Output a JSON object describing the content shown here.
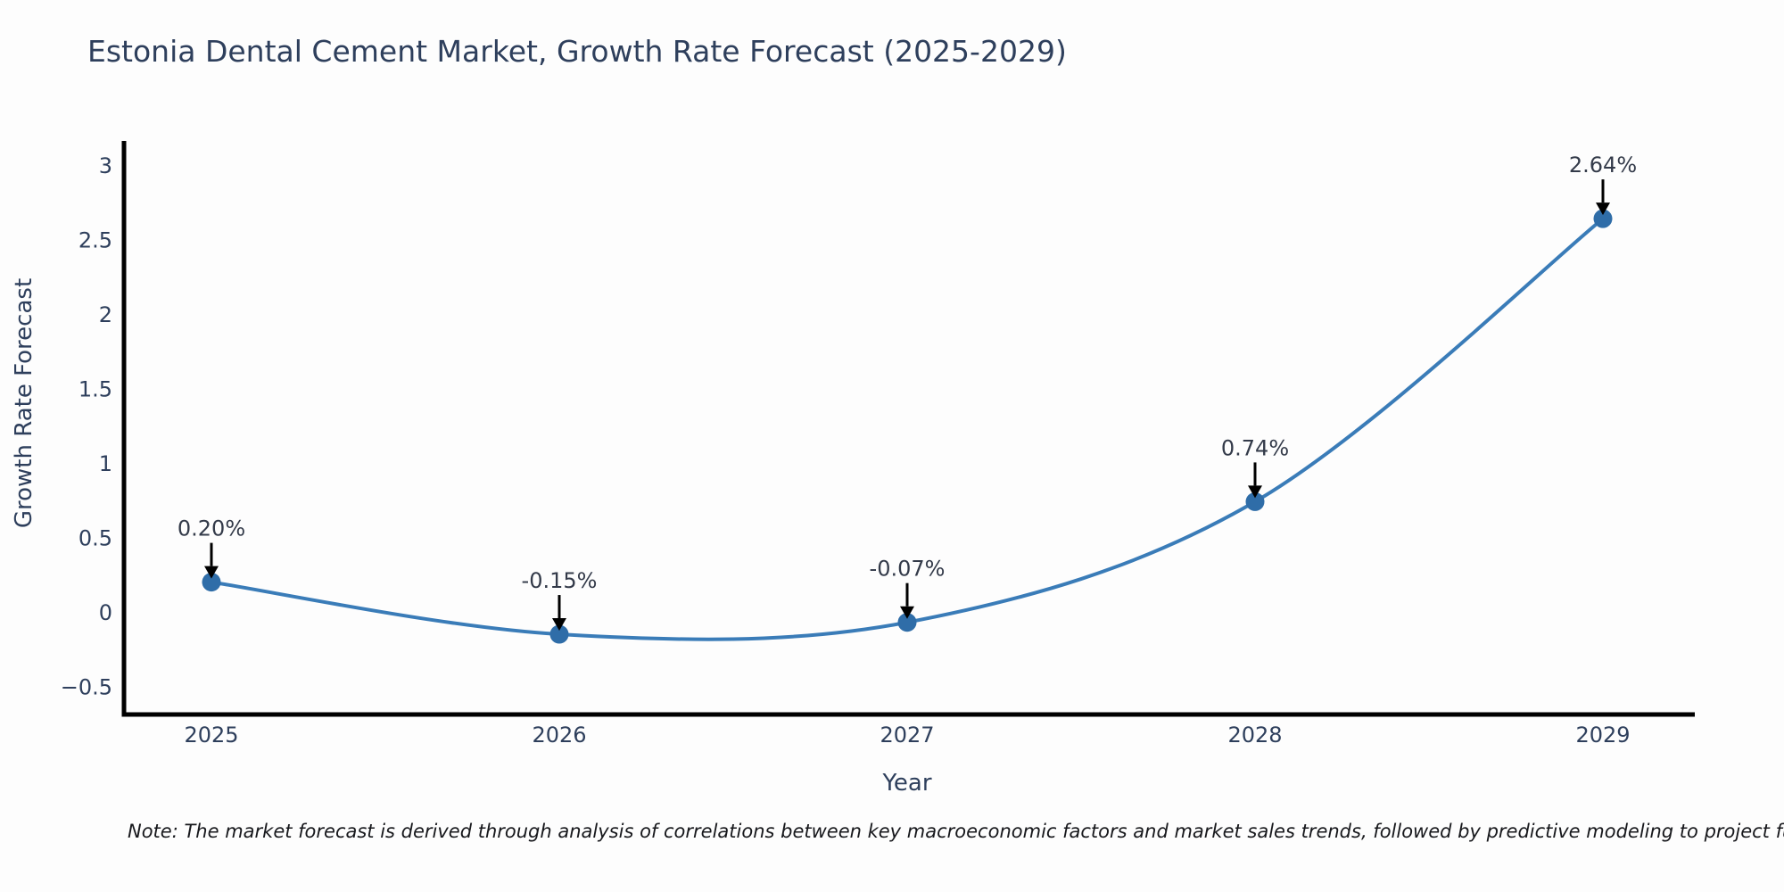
{
  "title": "Estonia Dental Cement Market, Growth Rate Forecast (2025-2029)",
  "note": "Note: The market forecast is derived through analysis of correlations between key macroeconomic factors and market sales trends, followed by predictive modeling to project future sales.",
  "chart_data": {
    "type": "line",
    "title": "Estonia Dental Cement Market, Growth Rate Forecast (2025-2029)",
    "xlabel": "Year",
    "ylabel": "Growth Rate Forecast",
    "categories": [
      "2025",
      "2026",
      "2027",
      "2028",
      "2029"
    ],
    "values": [
      0.2,
      -0.15,
      -0.07,
      0.74,
      2.64
    ],
    "point_labels": [
      "0.20%",
      "-0.15%",
      "-0.07%",
      "0.74%",
      "2.64%"
    ],
    "series_name": "Growth Rate Forecast",
    "line_shape": "spline",
    "markers": true,
    "annotation_style": "value label with down arrow to marker",
    "yticks": {
      "values": [
        3,
        2.5,
        2,
        1.5,
        1,
        0.5,
        0,
        -0.5
      ],
      "labels": [
        "3",
        "2.5",
        "2",
        "1.5",
        "1",
        "0.5",
        "0",
        "−0.5"
      ]
    },
    "ylim": [
      -0.69,
      3.15
    ],
    "grid": false,
    "legend": "none",
    "colors": {
      "line": "#3a7cb8",
      "marker": "#2f6da8",
      "axis": "#000000",
      "arrow": "#000000",
      "tick_text": "#2e3f5c",
      "annotation_text": "#333a49"
    }
  }
}
